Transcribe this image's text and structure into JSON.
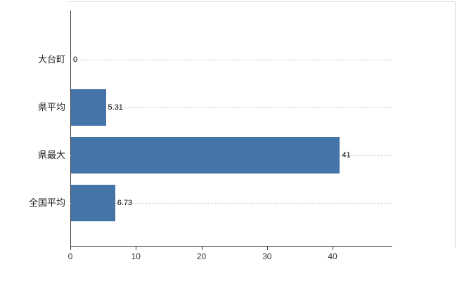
{
  "chart_data": {
    "type": "bar",
    "orientation": "horizontal",
    "title": "",
    "xlabel": "",
    "ylabel": "",
    "categories": [
      "大台町",
      "県平均",
      "県最大",
      "全国平均"
    ],
    "values": [
      0,
      5.31,
      41,
      6.73
    ],
    "value_labels": [
      "0",
      "5.31",
      "41",
      "6.73"
    ],
    "xlim": [
      0,
      49
    ],
    "x_ticks": [
      0,
      10,
      20,
      30,
      40
    ],
    "bar_color": "#4574a8",
    "grid": "horizontal dotted light, one line per category",
    "legend": "none",
    "background_color": "#ffffff"
  }
}
